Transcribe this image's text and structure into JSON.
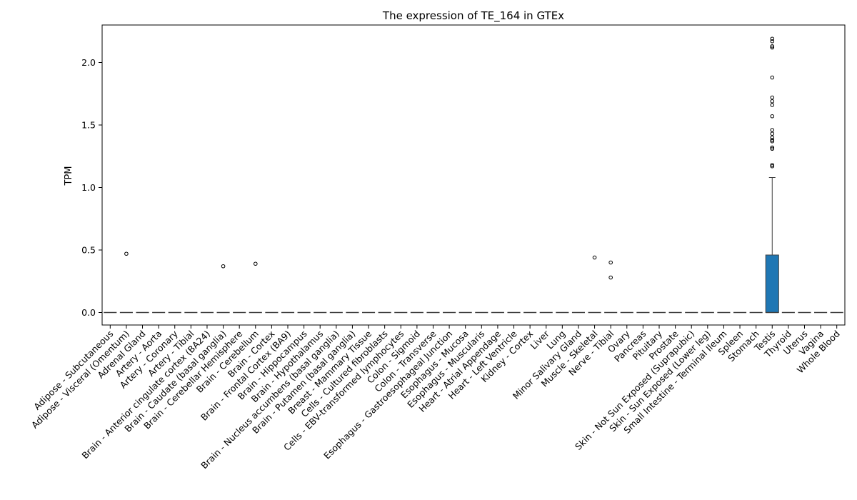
{
  "chart_data": {
    "type": "box",
    "title": "The expression of TE_164 in GTEx",
    "xlabel": "",
    "ylabel": "TPM",
    "ylim": [
      -0.1,
      2.3
    ],
    "yticks": [
      0.0,
      0.5,
      1.0,
      1.5,
      2.0
    ],
    "ytick_labels": [
      "0.0",
      "0.5",
      "1.0",
      "1.5",
      "2.0"
    ],
    "grid": false,
    "legend": "none",
    "box_color": "#1f77b4",
    "categories": [
      "Adipose - Subcutaneous",
      "Adipose - Visceral (Omentum)",
      "Adrenal Gland",
      "Artery - Aorta",
      "Artery - Coronary",
      "Artery - Tibial",
      "Brain - Anterior cingulate cortex (BA24)",
      "Brain - Caudate (basal ganglia)",
      "Brain - Cerebellar Hemisphere",
      "Brain - Cerebellum",
      "Brain - Cortex",
      "Brain - Frontal Cortex (BA9)",
      "Brain - Hippocampus",
      "Brain - Hypothalamus",
      "Brain - Nucleus accumbens (basal ganglia)",
      "Brain - Putamen (basal ganglia)",
      "Breast - Mammary Tissue",
      "Cells - Cultured fibroblasts",
      "Cells - EBV-transformed lymphocytes",
      "Colon - Sigmoid",
      "Colon - Transverse",
      "Esophagus - Gastroesophageal Junction",
      "Esophagus - Mucosa",
      "Esophagus - Muscularis",
      "Heart - Atrial Appendage",
      "Heart - Left Ventricle",
      "Kidney - Cortex",
      "Liver",
      "Lung",
      "Minor Salivary Gland",
      "Muscle - Skeletal",
      "Nerve - Tibial",
      "Ovary",
      "Pancreas",
      "Pituitary",
      "Prostate",
      "Skin - Not Sun Exposed (Suprapubic)",
      "Skin - Sun Exposed (Lower leg)",
      "Small Intestine - Terminal Ileum",
      "Spleen",
      "Stomach",
      "Testis",
      "Thyroid",
      "Uterus",
      "Vagina",
      "Whole Blood"
    ],
    "boxes": [
      {
        "q1": 0,
        "median": 0,
        "q3": 0,
        "whisker_low": 0,
        "whisker_high": 0,
        "outliers": []
      },
      {
        "q1": 0,
        "median": 0,
        "q3": 0,
        "whisker_low": 0,
        "whisker_high": 0,
        "outliers": [
          0.47
        ]
      },
      {
        "q1": 0,
        "median": 0,
        "q3": 0,
        "whisker_low": 0,
        "whisker_high": 0,
        "outliers": []
      },
      {
        "q1": 0,
        "median": 0,
        "q3": 0,
        "whisker_low": 0,
        "whisker_high": 0,
        "outliers": []
      },
      {
        "q1": 0,
        "median": 0,
        "q3": 0,
        "whisker_low": 0,
        "whisker_high": 0,
        "outliers": []
      },
      {
        "q1": 0,
        "median": 0,
        "q3": 0,
        "whisker_low": 0,
        "whisker_high": 0,
        "outliers": []
      },
      {
        "q1": 0,
        "median": 0,
        "q3": 0,
        "whisker_low": 0,
        "whisker_high": 0,
        "outliers": []
      },
      {
        "q1": 0,
        "median": 0,
        "q3": 0,
        "whisker_low": 0,
        "whisker_high": 0,
        "outliers": [
          0.37
        ]
      },
      {
        "q1": 0,
        "median": 0,
        "q3": 0,
        "whisker_low": 0,
        "whisker_high": 0,
        "outliers": []
      },
      {
        "q1": 0,
        "median": 0,
        "q3": 0,
        "whisker_low": 0,
        "whisker_high": 0,
        "outliers": [
          0.39
        ]
      },
      {
        "q1": 0,
        "median": 0,
        "q3": 0,
        "whisker_low": 0,
        "whisker_high": 0,
        "outliers": []
      },
      {
        "q1": 0,
        "median": 0,
        "q3": 0,
        "whisker_low": 0,
        "whisker_high": 0,
        "outliers": []
      },
      {
        "q1": 0,
        "median": 0,
        "q3": 0,
        "whisker_low": 0,
        "whisker_high": 0,
        "outliers": []
      },
      {
        "q1": 0,
        "median": 0,
        "q3": 0,
        "whisker_low": 0,
        "whisker_high": 0,
        "outliers": []
      },
      {
        "q1": 0,
        "median": 0,
        "q3": 0,
        "whisker_low": 0,
        "whisker_high": 0,
        "outliers": []
      },
      {
        "q1": 0,
        "median": 0,
        "q3": 0,
        "whisker_low": 0,
        "whisker_high": 0,
        "outliers": []
      },
      {
        "q1": 0,
        "median": 0,
        "q3": 0,
        "whisker_low": 0,
        "whisker_high": 0,
        "outliers": []
      },
      {
        "q1": 0,
        "median": 0,
        "q3": 0,
        "whisker_low": 0,
        "whisker_high": 0,
        "outliers": []
      },
      {
        "q1": 0,
        "median": 0,
        "q3": 0,
        "whisker_low": 0,
        "whisker_high": 0,
        "outliers": []
      },
      {
        "q1": 0,
        "median": 0,
        "q3": 0,
        "whisker_low": 0,
        "whisker_high": 0,
        "outliers": []
      },
      {
        "q1": 0,
        "median": 0,
        "q3": 0,
        "whisker_low": 0,
        "whisker_high": 0,
        "outliers": []
      },
      {
        "q1": 0,
        "median": 0,
        "q3": 0,
        "whisker_low": 0,
        "whisker_high": 0,
        "outliers": []
      },
      {
        "q1": 0,
        "median": 0,
        "q3": 0,
        "whisker_low": 0,
        "whisker_high": 0,
        "outliers": []
      },
      {
        "q1": 0,
        "median": 0,
        "q3": 0,
        "whisker_low": 0,
        "whisker_high": 0,
        "outliers": []
      },
      {
        "q1": 0,
        "median": 0,
        "q3": 0,
        "whisker_low": 0,
        "whisker_high": 0,
        "outliers": []
      },
      {
        "q1": 0,
        "median": 0,
        "q3": 0,
        "whisker_low": 0,
        "whisker_high": 0,
        "outliers": []
      },
      {
        "q1": 0,
        "median": 0,
        "q3": 0,
        "whisker_low": 0,
        "whisker_high": 0,
        "outliers": []
      },
      {
        "q1": 0,
        "median": 0,
        "q3": 0,
        "whisker_low": 0,
        "whisker_high": 0,
        "outliers": []
      },
      {
        "q1": 0,
        "median": 0,
        "q3": 0,
        "whisker_low": 0,
        "whisker_high": 0,
        "outliers": []
      },
      {
        "q1": 0,
        "median": 0,
        "q3": 0,
        "whisker_low": 0,
        "whisker_high": 0,
        "outliers": []
      },
      {
        "q1": 0,
        "median": 0,
        "q3": 0,
        "whisker_low": 0,
        "whisker_high": 0,
        "outliers": [
          0.44
        ]
      },
      {
        "q1": 0,
        "median": 0,
        "q3": 0,
        "whisker_low": 0,
        "whisker_high": 0,
        "outliers": [
          0.4,
          0.28
        ]
      },
      {
        "q1": 0,
        "median": 0,
        "q3": 0,
        "whisker_low": 0,
        "whisker_high": 0,
        "outliers": []
      },
      {
        "q1": 0,
        "median": 0,
        "q3": 0,
        "whisker_low": 0,
        "whisker_high": 0,
        "outliers": []
      },
      {
        "q1": 0,
        "median": 0,
        "q3": 0,
        "whisker_low": 0,
        "whisker_high": 0,
        "outliers": []
      },
      {
        "q1": 0,
        "median": 0,
        "q3": 0,
        "whisker_low": 0,
        "whisker_high": 0,
        "outliers": []
      },
      {
        "q1": 0,
        "median": 0,
        "q3": 0,
        "whisker_low": 0,
        "whisker_high": 0,
        "outliers": []
      },
      {
        "q1": 0,
        "median": 0,
        "q3": 0,
        "whisker_low": 0,
        "whisker_high": 0,
        "outliers": []
      },
      {
        "q1": 0,
        "median": 0,
        "q3": 0,
        "whisker_low": 0,
        "whisker_high": 0,
        "outliers": []
      },
      {
        "q1": 0,
        "median": 0,
        "q3": 0,
        "whisker_low": 0,
        "whisker_high": 0,
        "outliers": []
      },
      {
        "q1": 0,
        "median": 0,
        "q3": 0,
        "whisker_low": 0,
        "whisker_high": 0,
        "outliers": []
      },
      {
        "q1": 0,
        "median": 0,
        "q3": 0.46,
        "whisker_low": 0,
        "whisker_high": 1.08,
        "outliers": [
          2.19,
          2.17,
          2.13,
          2.12,
          1.88,
          1.72,
          1.69,
          1.66,
          1.57,
          1.46,
          1.43,
          1.4,
          1.38,
          1.37,
          1.32,
          1.31,
          1.18,
          1.17
        ]
      },
      {
        "q1": 0,
        "median": 0,
        "q3": 0,
        "whisker_low": 0,
        "whisker_high": 0,
        "outliers": []
      },
      {
        "q1": 0,
        "median": 0,
        "q3": 0,
        "whisker_low": 0,
        "whisker_high": 0,
        "outliers": []
      },
      {
        "q1": 0,
        "median": 0,
        "q3": 0,
        "whisker_low": 0,
        "whisker_high": 0,
        "outliers": []
      },
      {
        "q1": 0,
        "median": 0,
        "q3": 0,
        "whisker_low": 0,
        "whisker_high": 0,
        "outliers": []
      }
    ]
  }
}
